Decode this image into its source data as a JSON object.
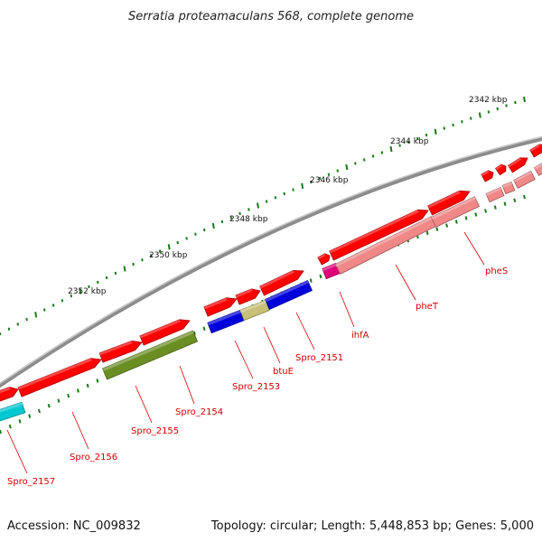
{
  "title": "Serratia proteamaculans 568, complete genome",
  "accession": "Accession: NC_009832",
  "topology": "Topology: circular; Length: 5,448,853 bp; Genes: 5,000",
  "scale_labels": [
    "2342 kbp",
    "2344 kbp",
    "2346 kbp",
    "2348 kbp",
    "2350 kbp",
    "2352 kbp"
  ],
  "genes": [
    {
      "label": "Spro_2157",
      "color": "#00c8d2"
    },
    {
      "label": "Spro_2156",
      "color": "#ff0000"
    },
    {
      "label": "Spro_2155",
      "color": "#6b8e23"
    },
    {
      "label": "Spro_2154",
      "color": "#ff0000"
    },
    {
      "label": "Spro_2153",
      "color": "#0000dd"
    },
    {
      "label": "btuE",
      "color": "#c8c078"
    },
    {
      "label": "Spro_2151",
      "color": "#0000dd"
    },
    {
      "label": "ihfA",
      "color": "#e0007a"
    },
    {
      "label": "pheT",
      "color": "#f08888"
    },
    {
      "label": "pheS",
      "color": "#f08888"
    }
  ],
  "colors": {
    "backbone": "#8c8c8c",
    "cds": "#ff0000",
    "tick": "#1a7a1a",
    "gene_label": "#d00000"
  }
}
